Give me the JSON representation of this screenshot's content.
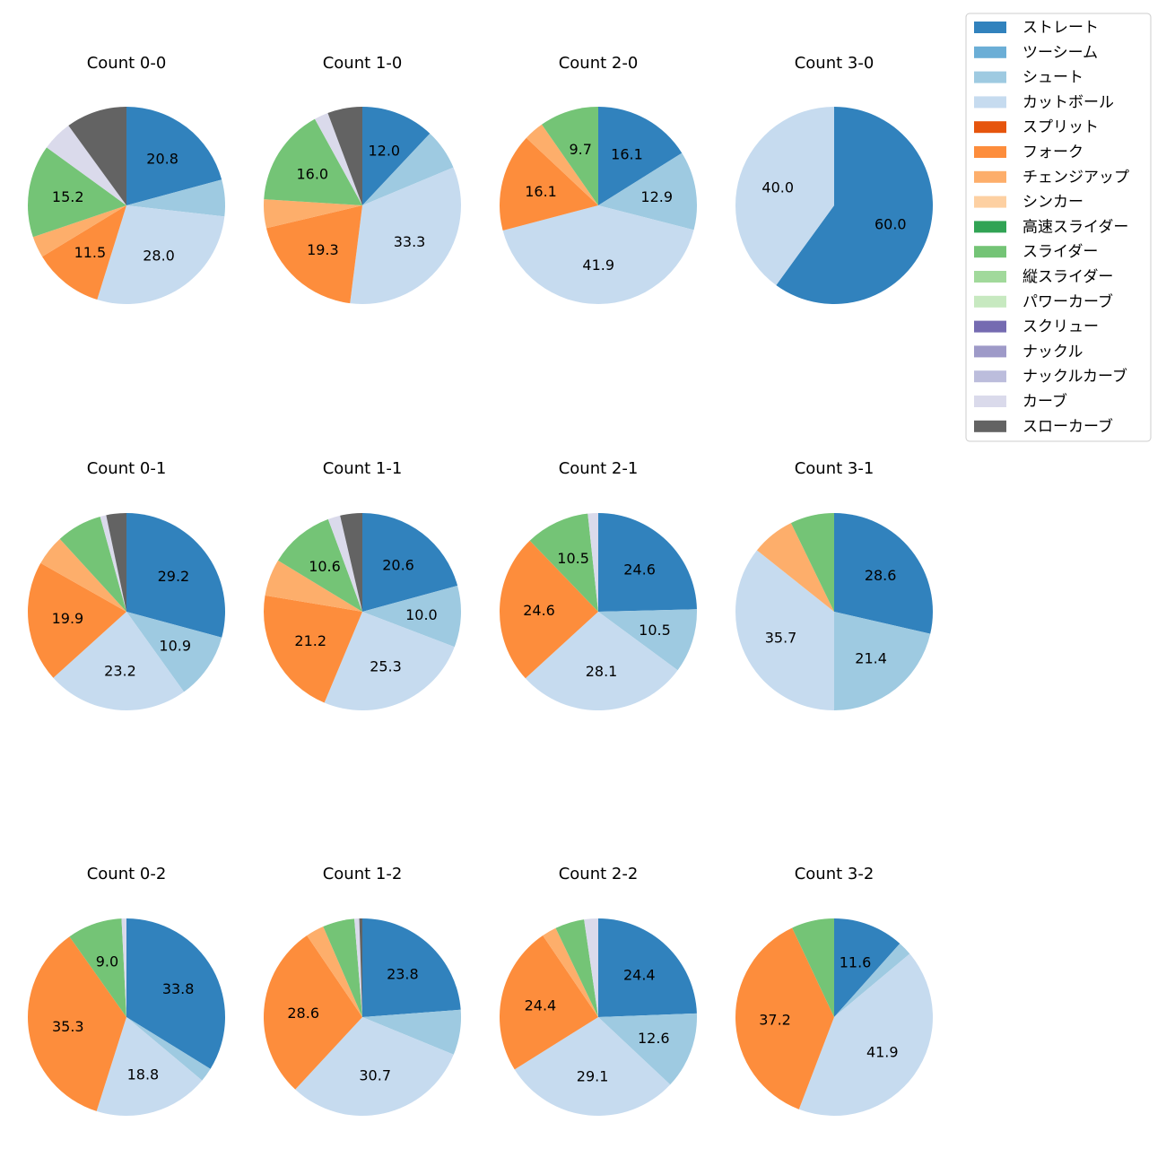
{
  "legend": [
    {
      "label": "ストレート",
      "color": "#3182bd"
    },
    {
      "label": "ツーシーム",
      "color": "#6baed6"
    },
    {
      "label": "シュート",
      "color": "#9ecae1"
    },
    {
      "label": "カットボール",
      "color": "#c6dbef"
    },
    {
      "label": "スプリット",
      "color": "#e6550d"
    },
    {
      "label": "フォーク",
      "color": "#fd8d3c"
    },
    {
      "label": "チェンジアップ",
      "color": "#fdae6b"
    },
    {
      "label": "シンカー",
      "color": "#fdd0a2"
    },
    {
      "label": "高速スライダー",
      "color": "#31a354"
    },
    {
      "label": "スライダー",
      "color": "#74c476"
    },
    {
      "label": "縦スライダー",
      "color": "#a1d99b"
    },
    {
      "label": "パワーカーブ",
      "color": "#c7e9c0"
    },
    {
      "label": "スクリュー",
      "color": "#756bb1"
    },
    {
      "label": "ナックル",
      "color": "#9e9ac8"
    },
    {
      "label": "ナックルカーブ",
      "color": "#bcbddc"
    },
    {
      "label": "カーブ",
      "color": "#dadaeb"
    },
    {
      "label": "スローカーブ",
      "color": "#636363"
    }
  ],
  "chart_data": [
    {
      "type": "pie",
      "title": "Count 0-0",
      "slices": [
        {
          "pitch": "ストレート",
          "value": 20.8
        },
        {
          "pitch": "シュート",
          "value": 6.0
        },
        {
          "pitch": "カットボール",
          "value": 28.0
        },
        {
          "pitch": "フォーク",
          "value": 11.5
        },
        {
          "pitch": "チェンジアップ",
          "value": 3.5
        },
        {
          "pitch": "スライダー",
          "value": 15.2
        },
        {
          "pitch": "カーブ",
          "value": 5.0
        },
        {
          "pitch": "スローカーブ",
          "value": 10.0
        }
      ],
      "labels": [
        "20.8",
        "",
        "28.0",
        "11.5",
        "",
        "15.2",
        "",
        ""
      ]
    },
    {
      "type": "pie",
      "title": "Count 1-0",
      "slices": [
        {
          "pitch": "ストレート",
          "value": 12.0
        },
        {
          "pitch": "シュート",
          "value": 6.7
        },
        {
          "pitch": "カットボール",
          "value": 33.3
        },
        {
          "pitch": "フォーク",
          "value": 19.3
        },
        {
          "pitch": "チェンジアップ",
          "value": 4.7
        },
        {
          "pitch": "スライダー",
          "value": 16.0
        },
        {
          "pitch": "カーブ",
          "value": 2.3
        },
        {
          "pitch": "スローカーブ",
          "value": 5.7
        }
      ],
      "labels": [
        "12.0",
        "",
        "33.3",
        "19.3",
        "",
        "16.0",
        "",
        ""
      ]
    },
    {
      "type": "pie",
      "title": "Count 2-0",
      "slices": [
        {
          "pitch": "ストレート",
          "value": 16.1
        },
        {
          "pitch": "シュート",
          "value": 12.9
        },
        {
          "pitch": "カットボール",
          "value": 41.9
        },
        {
          "pitch": "フォーク",
          "value": 16.1
        },
        {
          "pitch": "チェンジアップ",
          "value": 3.3
        },
        {
          "pitch": "スライダー",
          "value": 9.7
        }
      ],
      "labels": [
        "16.1",
        "12.9",
        "41.9",
        "16.1",
        "",
        "9.7"
      ]
    },
    {
      "type": "pie",
      "title": "Count 3-0",
      "slices": [
        {
          "pitch": "ストレート",
          "value": 60.0
        },
        {
          "pitch": "カットボール",
          "value": 40.0
        }
      ],
      "labels": [
        "60.0",
        "40.0"
      ]
    },
    {
      "type": "pie",
      "title": "Count 0-1",
      "slices": [
        {
          "pitch": "ストレート",
          "value": 29.2
        },
        {
          "pitch": "シュート",
          "value": 10.9
        },
        {
          "pitch": "カットボール",
          "value": 23.2
        },
        {
          "pitch": "フォーク",
          "value": 19.9
        },
        {
          "pitch": "チェンジアップ",
          "value": 5.0
        },
        {
          "pitch": "スライダー",
          "value": 7.5
        },
        {
          "pitch": "カーブ",
          "value": 1.0
        },
        {
          "pitch": "スローカーブ",
          "value": 3.3
        }
      ],
      "labels": [
        "29.2",
        "10.9",
        "23.2",
        "19.9",
        "",
        "",
        "",
        ""
      ]
    },
    {
      "type": "pie",
      "title": "Count 1-1",
      "slices": [
        {
          "pitch": "ストレート",
          "value": 20.6
        },
        {
          "pitch": "シュート",
          "value": 10.0
        },
        {
          "pitch": "カットボール",
          "value": 25.3
        },
        {
          "pitch": "フォーク",
          "value": 21.2
        },
        {
          "pitch": "チェンジアップ",
          "value": 6.0
        },
        {
          "pitch": "スライダー",
          "value": 10.6
        },
        {
          "pitch": "カーブ",
          "value": 2.0
        },
        {
          "pitch": "スローカーブ",
          "value": 3.6
        }
      ],
      "labels": [
        "20.6",
        "10.0",
        "25.3",
        "21.2",
        "",
        "10.6",
        "",
        ""
      ]
    },
    {
      "type": "pie",
      "title": "Count 2-1",
      "slices": [
        {
          "pitch": "ストレート",
          "value": 24.6
        },
        {
          "pitch": "シュート",
          "value": 10.5
        },
        {
          "pitch": "カットボール",
          "value": 28.1
        },
        {
          "pitch": "フォーク",
          "value": 24.6
        },
        {
          "pitch": "スライダー",
          "value": 10.5
        },
        {
          "pitch": "カーブ",
          "value": 1.7
        }
      ],
      "labels": [
        "24.6",
        "10.5",
        "28.1",
        "24.6",
        "10.5",
        ""
      ]
    },
    {
      "type": "pie",
      "title": "Count 3-1",
      "slices": [
        {
          "pitch": "ストレート",
          "value": 28.6
        },
        {
          "pitch": "シュート",
          "value": 21.4
        },
        {
          "pitch": "カットボール",
          "value": 35.7
        },
        {
          "pitch": "チェンジアップ",
          "value": 7.1
        },
        {
          "pitch": "スライダー",
          "value": 7.2
        }
      ],
      "labels": [
        "28.6",
        "21.4",
        "35.7",
        "",
        ""
      ]
    },
    {
      "type": "pie",
      "title": "Count 0-2",
      "slices": [
        {
          "pitch": "ストレート",
          "value": 33.8
        },
        {
          "pitch": "シュート",
          "value": 2.3
        },
        {
          "pitch": "カットボール",
          "value": 18.8
        },
        {
          "pitch": "フォーク",
          "value": 35.3
        },
        {
          "pitch": "スライダー",
          "value": 9.0
        },
        {
          "pitch": "カーブ",
          "value": 0.8
        }
      ],
      "labels": [
        "33.8",
        "",
        "18.8",
        "35.3",
        "9.0",
        ""
      ]
    },
    {
      "type": "pie",
      "title": "Count 1-2",
      "slices": [
        {
          "pitch": "ストレート",
          "value": 23.8
        },
        {
          "pitch": "シュート",
          "value": 7.4
        },
        {
          "pitch": "カットボール",
          "value": 30.7
        },
        {
          "pitch": "フォーク",
          "value": 28.6
        },
        {
          "pitch": "チェンジアップ",
          "value": 3.0
        },
        {
          "pitch": "スライダー",
          "value": 5.2
        },
        {
          "pitch": "カーブ",
          "value": 0.8
        },
        {
          "pitch": "スローカーブ",
          "value": 0.5
        }
      ],
      "labels": [
        "23.8",
        "",
        "30.7",
        "28.6",
        "",
        "",
        "",
        ""
      ]
    },
    {
      "type": "pie",
      "title": "Count 2-2",
      "slices": [
        {
          "pitch": "ストレート",
          "value": 24.4
        },
        {
          "pitch": "シュート",
          "value": 12.6
        },
        {
          "pitch": "カットボール",
          "value": 29.1
        },
        {
          "pitch": "フォーク",
          "value": 24.4
        },
        {
          "pitch": "チェンジアップ",
          "value": 2.4
        },
        {
          "pitch": "スライダー",
          "value": 4.8
        },
        {
          "pitch": "カーブ",
          "value": 2.3
        }
      ],
      "labels": [
        "24.4",
        "12.6",
        "29.1",
        "24.4",
        "",
        "",
        ""
      ]
    },
    {
      "type": "pie",
      "title": "Count 3-2",
      "slices": [
        {
          "pitch": "ストレート",
          "value": 11.6
        },
        {
          "pitch": "シュート",
          "value": 2.3
        },
        {
          "pitch": "カットボール",
          "value": 41.9
        },
        {
          "pitch": "フォーク",
          "value": 37.2
        },
        {
          "pitch": "スライダー",
          "value": 7.0
        }
      ],
      "labels": [
        "11.6",
        "",
        "41.9",
        "37.2",
        ""
      ]
    }
  ]
}
